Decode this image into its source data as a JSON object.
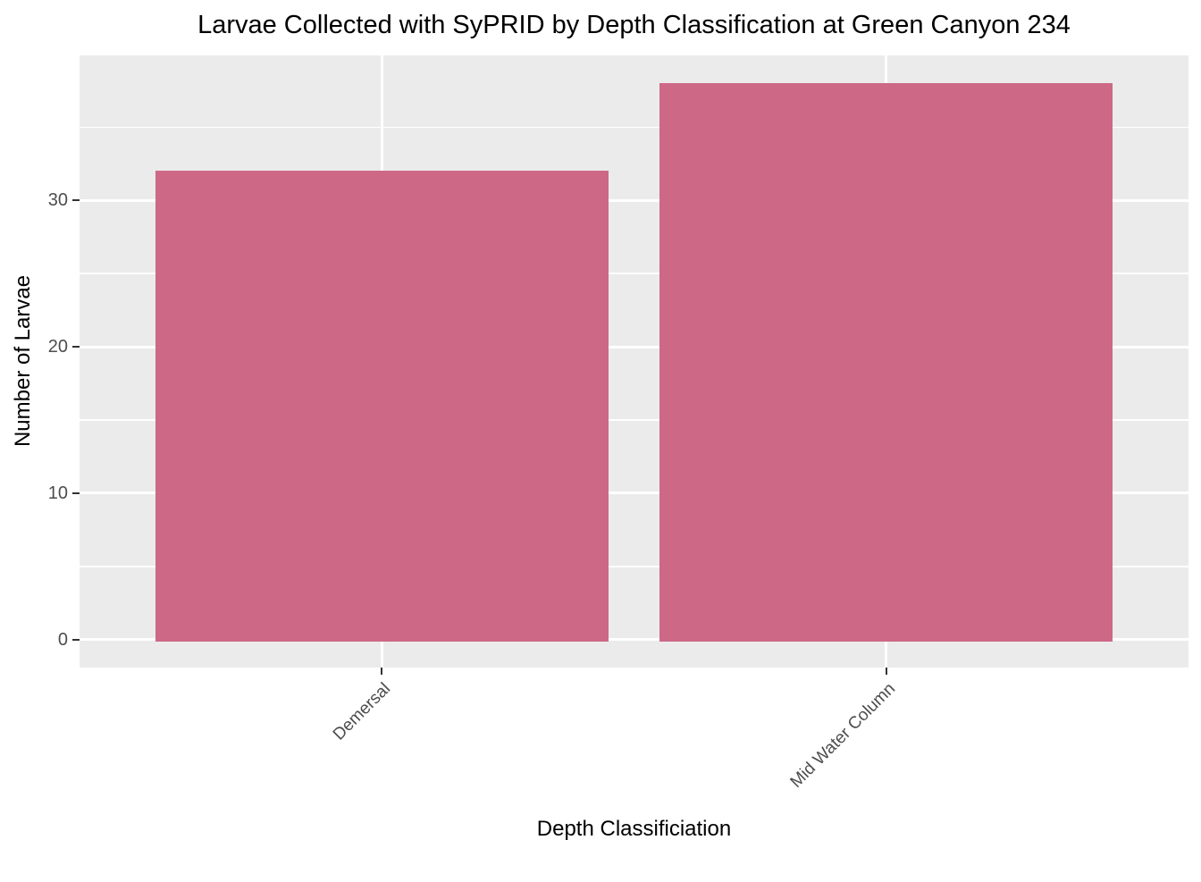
{
  "chart_data": {
    "type": "bar",
    "title": "Larvae Collected with SyPRID by Depth Classification at Green Canyon 234",
    "xlabel": "Depth Classificiation",
    "ylabel": "Number of Larvae",
    "categories": [
      "Demersal",
      "Mid Water Column"
    ],
    "values": [
      32,
      38
    ],
    "yticks": [
      0,
      10,
      20,
      30
    ],
    "minor_gridlines": [
      5,
      15,
      25,
      35
    ],
    "ylim": [
      -1.9,
      39.9
    ],
    "grid": "on",
    "legend_position": "none",
    "x_tick_label_angle_deg": 45,
    "colors": {
      "bar_fill": "#CD6886",
      "panel_background": "#EBEBEB",
      "gridline": "#FFFFFF",
      "tick_label": "#4D4D4D",
      "tick_mark": "#333333",
      "title_text": "#000000",
      "page_background": "#FFFFFF"
    }
  }
}
